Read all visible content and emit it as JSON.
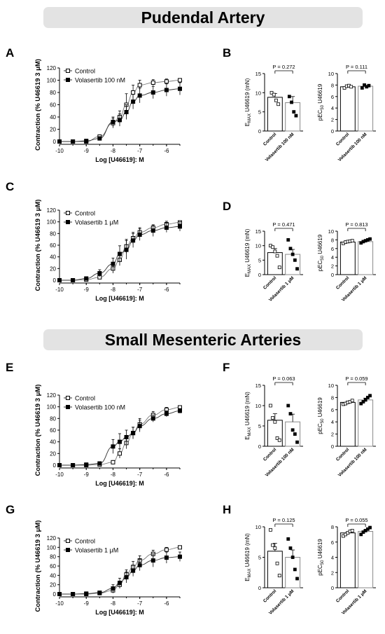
{
  "sections": [
    {
      "title": "Pudendal Artery"
    },
    {
      "title": "Small Mesenteric Arteries"
    }
  ],
  "chart_data": [
    {
      "type": "line",
      "panel": "A",
      "title": "",
      "xlabel": "Log [U46619]: M",
      "ylabel": "Contraction (% U46619 3 μM)",
      "xlim": [
        -10,
        -5.5
      ],
      "ylim": [
        0,
        120
      ],
      "xticks": [
        "-10",
        "-9",
        "-8",
        "-7",
        "-6"
      ],
      "yticks": [
        "0",
        "20",
        "40",
        "60",
        "80",
        "100",
        "120"
      ],
      "x": [
        -10,
        -9.5,
        -9,
        -8.5,
        -8,
        -7.75,
        -7.5,
        -7.25,
        -7,
        -6.5,
        -6,
        -5.5
      ],
      "series": [
        {
          "name": "Control",
          "marker": "open-square",
          "values": [
            0,
            0,
            0,
            8,
            30,
            40,
            60,
            80,
            92,
            96,
            98,
            100
          ],
          "err": [
            0,
            0,
            0,
            3,
            8,
            10,
            18,
            12,
            8,
            5,
            4,
            3
          ]
        },
        {
          "name": "Volasertib 100 nM",
          "marker": "filled-square",
          "values": [
            0,
            0,
            1,
            5,
            32,
            35,
            48,
            65,
            75,
            80,
            84,
            86
          ],
          "err": [
            0,
            0,
            0,
            3,
            8,
            10,
            12,
            12,
            12,
            10,
            10,
            10
          ]
        }
      ]
    },
    {
      "type": "bar",
      "panel": "B1",
      "ylabel": "E_MAX U46619 (mN)",
      "ylim": [
        0,
        15
      ],
      "yticks": [
        "0",
        "5",
        "10",
        "15"
      ],
      "categories": [
        "Control",
        "Volasertib 100 nM"
      ],
      "values": [
        8.8,
        7.4
      ],
      "sem": [
        1.0,
        1.6
      ],
      "points": [
        [
          10,
          9.5,
          8,
          7
        ],
        [
          9,
          7.5,
          5,
          4
        ]
      ],
      "annotation": "P = 0.272"
    },
    {
      "type": "bar",
      "panel": "B2",
      "ylabel": "pEC50 U46619",
      "ylim": [
        0,
        10
      ],
      "yticks": [
        "0",
        "2",
        "4",
        "6",
        "8",
        "10"
      ],
      "categories": [
        "Control",
        "Volasertib 100 nM"
      ],
      "values": [
        7.7,
        7.8
      ],
      "sem": [
        0.1,
        0.15
      ],
      "points": [
        [
          7.5,
          7.8,
          7.9,
          7.7
        ],
        [
          7.5,
          8.0,
          7.7,
          7.9
        ]
      ],
      "annotation": "P = 0.111"
    },
    {
      "type": "line",
      "panel": "C",
      "title": "",
      "xlabel": "Log [U46619]: M",
      "ylabel": "Contraction (% U46619 3 μM)",
      "xlim": [
        -10,
        -5.5
      ],
      "ylim": [
        0,
        120
      ],
      "xticks": [
        "-10",
        "-9",
        "-8",
        "-7",
        "-6"
      ],
      "yticks": [
        "0",
        "20",
        "40",
        "60",
        "80",
        "100",
        "120"
      ],
      "x": [
        -10,
        -9.5,
        -9,
        -8.5,
        -8,
        -7.75,
        -7.5,
        -7.25,
        -7,
        -6.5,
        -6,
        -5.5
      ],
      "series": [
        {
          "name": "Control",
          "marker": "open-square",
          "values": [
            0,
            0,
            1,
            5,
            20,
            35,
            58,
            72,
            82,
            90,
            96,
            99
          ],
          "err": [
            0,
            0,
            0,
            3,
            8,
            10,
            12,
            10,
            8,
            5,
            5,
            3
          ]
        },
        {
          "name": "Volasertib 1 μM",
          "marker": "filled-square",
          "values": [
            0,
            0,
            3,
            12,
            28,
            45,
            52,
            68,
            78,
            85,
            90,
            92
          ],
          "err": [
            0,
            0,
            2,
            6,
            10,
            14,
            16,
            12,
            10,
            10,
            8,
            8
          ]
        }
      ]
    },
    {
      "type": "bar",
      "panel": "D1",
      "ylabel": "E_MAX U46619 (mN)",
      "ylim": [
        0,
        15
      ],
      "yticks": [
        "0",
        "5",
        "10",
        "15"
      ],
      "categories": [
        "Control",
        "Volasertib 1 μM"
      ],
      "values": [
        7.6,
        7.0
      ],
      "sem": [
        1.4,
        1.7
      ],
      "points": [
        [
          10,
          9.5,
          8,
          6.5,
          2.5
        ],
        [
          12,
          9,
          7,
          5,
          2
        ]
      ],
      "annotation": "P = 0.471"
    },
    {
      "type": "bar",
      "panel": "D2",
      "ylabel": "pEC50 U46619",
      "ylim": [
        0,
        10
      ],
      "yticks": [
        "0",
        "2",
        "4",
        "6",
        "8",
        "10"
      ],
      "categories": [
        "Control",
        "Volasertib 1 μM"
      ],
      "values": [
        7.5,
        7.6
      ],
      "sem": [
        0.15,
        0.2
      ],
      "points": [
        [
          7.2,
          7.5,
          7.6,
          7.7,
          7.8
        ],
        [
          7.3,
          7.6,
          7.8,
          8.0,
          8.2
        ]
      ],
      "annotation": "P = 0.813"
    },
    {
      "type": "line",
      "panel": "E",
      "title": "",
      "xlabel": "Log [U46619]: M",
      "ylabel": "Contraction (% U46619 3 μM)",
      "xlim": [
        -10,
        -5.5
      ],
      "ylim": [
        0,
        120
      ],
      "xticks": [
        "-10",
        "-9",
        "-8",
        "-7",
        "-6"
      ],
      "yticks": [
        "0",
        "20",
        "40",
        "60",
        "80",
        "100",
        "120"
      ],
      "x": [
        -10,
        -9.5,
        -9,
        -8.5,
        -8,
        -7.75,
        -7.5,
        -7.25,
        -7,
        -6.5,
        -6,
        -5.5
      ],
      "series": [
        {
          "name": "Control",
          "marker": "open-square",
          "values": [
            0,
            0,
            0,
            1,
            5,
            20,
            38,
            55,
            70,
            86,
            95,
            99
          ],
          "err": [
            0,
            0,
            0,
            1,
            3,
            8,
            10,
            10,
            10,
            6,
            4,
            2
          ]
        },
        {
          "name": "Volasertib 100 nM",
          "marker": "filled-square",
          "values": [
            0,
            0,
            1,
            3,
            32,
            40,
            48,
            55,
            67,
            80,
            88,
            93
          ],
          "err": [
            0,
            0,
            1,
            3,
            12,
            14,
            12,
            10,
            10,
            6,
            5,
            4
          ]
        }
      ]
    },
    {
      "type": "bar",
      "panel": "F1",
      "ylabel": "E_MAX U46619 (mN)",
      "ylim": [
        0,
        15
      ],
      "yticks": [
        "0",
        "5",
        "10",
        "15"
      ],
      "categories": [
        "Control",
        "Volasertib 100 nM"
      ],
      "values": [
        6.4,
        6.0
      ],
      "sem": [
        1.6,
        1.9
      ],
      "points": [
        [
          10,
          7,
          6,
          2,
          1.5
        ],
        [
          10,
          8,
          4,
          3,
          1
        ]
      ],
      "annotation": "P = 0.063"
    },
    {
      "type": "bar",
      "panel": "F2",
      "ylabel": "pEC50 U46619",
      "ylim": [
        0,
        10
      ],
      "yticks": [
        "0",
        "2",
        "4",
        "6",
        "8",
        "10"
      ],
      "categories": [
        "Control",
        "Volasertib 100 nM"
      ],
      "values": [
        7.2,
        7.6
      ],
      "sem": [
        0.2,
        0.3
      ],
      "points": [
        [
          6.9,
          7.0,
          7.2,
          7.3,
          7.5
        ],
        [
          7.0,
          7.3,
          7.6,
          8.0,
          8.3
        ]
      ],
      "annotation": "P = 0.059"
    },
    {
      "type": "line",
      "panel": "G",
      "title": "",
      "xlabel": "Log [U46619]: M",
      "ylabel": "Contraction (% U46619 3 μM)",
      "xlim": [
        -10,
        -5.5
      ],
      "ylim": [
        0,
        120
      ],
      "xticks": [
        "-10",
        "-9",
        "-8",
        "-7",
        "-6"
      ],
      "yticks": [
        "0",
        "20",
        "40",
        "60",
        "80",
        "100",
        "120"
      ],
      "x": [
        -10,
        -9.5,
        -9,
        -8.5,
        -8,
        -7.75,
        -7.5,
        -7.25,
        -7,
        -6.5,
        -6,
        -5.5
      ],
      "series": [
        {
          "name": "Control",
          "marker": "open-square",
          "values": [
            0,
            0,
            0,
            2,
            8,
            20,
            42,
            58,
            72,
            86,
            95,
            100
          ],
          "err": [
            0,
            0,
            0,
            2,
            6,
            8,
            10,
            12,
            10,
            8,
            5,
            3
          ]
        },
        {
          "name": "Volasertib 1 μM",
          "marker": "filled-square",
          "values": [
            0,
            0,
            1,
            3,
            12,
            24,
            36,
            50,
            62,
            72,
            78,
            80
          ],
          "err": [
            0,
            0,
            1,
            3,
            8,
            10,
            12,
            12,
            12,
            14,
            12,
            10
          ]
        }
      ]
    },
    {
      "type": "bar",
      "panel": "H1",
      "ylabel": "E_MAX U46619 (mN)",
      "ylim": [
        0,
        10
      ],
      "yticks": [
        "0",
        "5",
        "10"
      ],
      "categories": [
        "Control",
        "Volasertib 1 μM"
      ],
      "values": [
        6.0,
        5.0
      ],
      "sem": [
        1.3,
        1.2
      ],
      "points": [
        [
          9.5,
          7,
          6.5,
          4,
          2
        ],
        [
          8,
          6.5,
          5,
          3,
          1.5
        ]
      ],
      "annotation": "P = 0.125"
    },
    {
      "type": "bar",
      "panel": "H2",
      "ylabel": "pEC50 U46619",
      "ylim": [
        0,
        8
      ],
      "yticks": [
        "0",
        "2",
        "4",
        "6",
        "8"
      ],
      "categories": [
        "Control",
        "Volasertib 1 μM"
      ],
      "values": [
        7.2,
        7.4
      ],
      "sem": [
        0.15,
        0.2
      ],
      "points": [
        [
          6.8,
          7.0,
          7.2,
          7.4,
          7.5
        ],
        [
          7.0,
          7.3,
          7.5,
          7.7,
          7.9
        ]
      ],
      "annotation": "P = 0.055"
    }
  ],
  "panel_letters": {
    "A": "A",
    "B": "B",
    "C": "C",
    "D": "D",
    "E": "E",
    "F": "F",
    "G": "G",
    "H": "H"
  }
}
